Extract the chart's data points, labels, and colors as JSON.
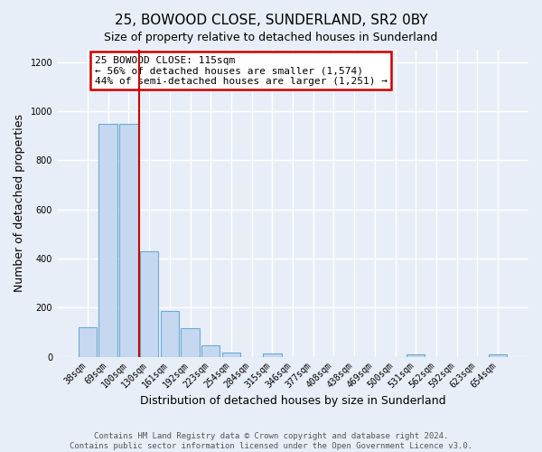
{
  "title": "25, BOWOOD CLOSE, SUNDERLAND, SR2 0BY",
  "subtitle": "Size of property relative to detached houses in Sunderland",
  "xlabel": "Distribution of detached houses by size in Sunderland",
  "ylabel": "Number of detached properties",
  "bar_labels": [
    "38sqm",
    "69sqm",
    "100sqm",
    "130sqm",
    "161sqm",
    "192sqm",
    "223sqm",
    "254sqm",
    "284sqm",
    "315sqm",
    "346sqm",
    "377sqm",
    "408sqm",
    "438sqm",
    "469sqm",
    "500sqm",
    "531sqm",
    "562sqm",
    "592sqm",
    "623sqm",
    "654sqm"
  ],
  "bar_values": [
    120,
    950,
    950,
    430,
    185,
    115,
    47,
    18,
    0,
    15,
    0,
    0,
    0,
    0,
    0,
    0,
    10,
    0,
    0,
    0,
    8
  ],
  "bar_color": "#c5d8f0",
  "bar_edge_color": "#6aaad4",
  "vline_pos": 2.5,
  "annotation_title": "25 BOWOOD CLOSE: 115sqm",
  "annotation_line1": "← 56% of detached houses are smaller (1,574)",
  "annotation_line2": "44% of semi-detached houses are larger (1,251) →",
  "annotation_box_color": "#ffffff",
  "annotation_box_edge_color": "#cc0000",
  "vline_color": "#cc0000",
  "ylim": [
    0,
    1250
  ],
  "yticks": [
    0,
    200,
    400,
    600,
    800,
    1000,
    1200
  ],
  "footer1": "Contains HM Land Registry data © Crown copyright and database right 2024.",
  "footer2": "Contains public sector information licensed under the Open Government Licence v3.0.",
  "bg_color": "#e8eef7",
  "plot_bg_color": "#e8eef7",
  "grid_color": "#ffffff",
  "title_fontsize": 11,
  "subtitle_fontsize": 9,
  "xlabel_fontsize": 9,
  "ylabel_fontsize": 9,
  "tick_fontsize": 7,
  "annot_fontsize": 8,
  "footer_fontsize": 6.5
}
